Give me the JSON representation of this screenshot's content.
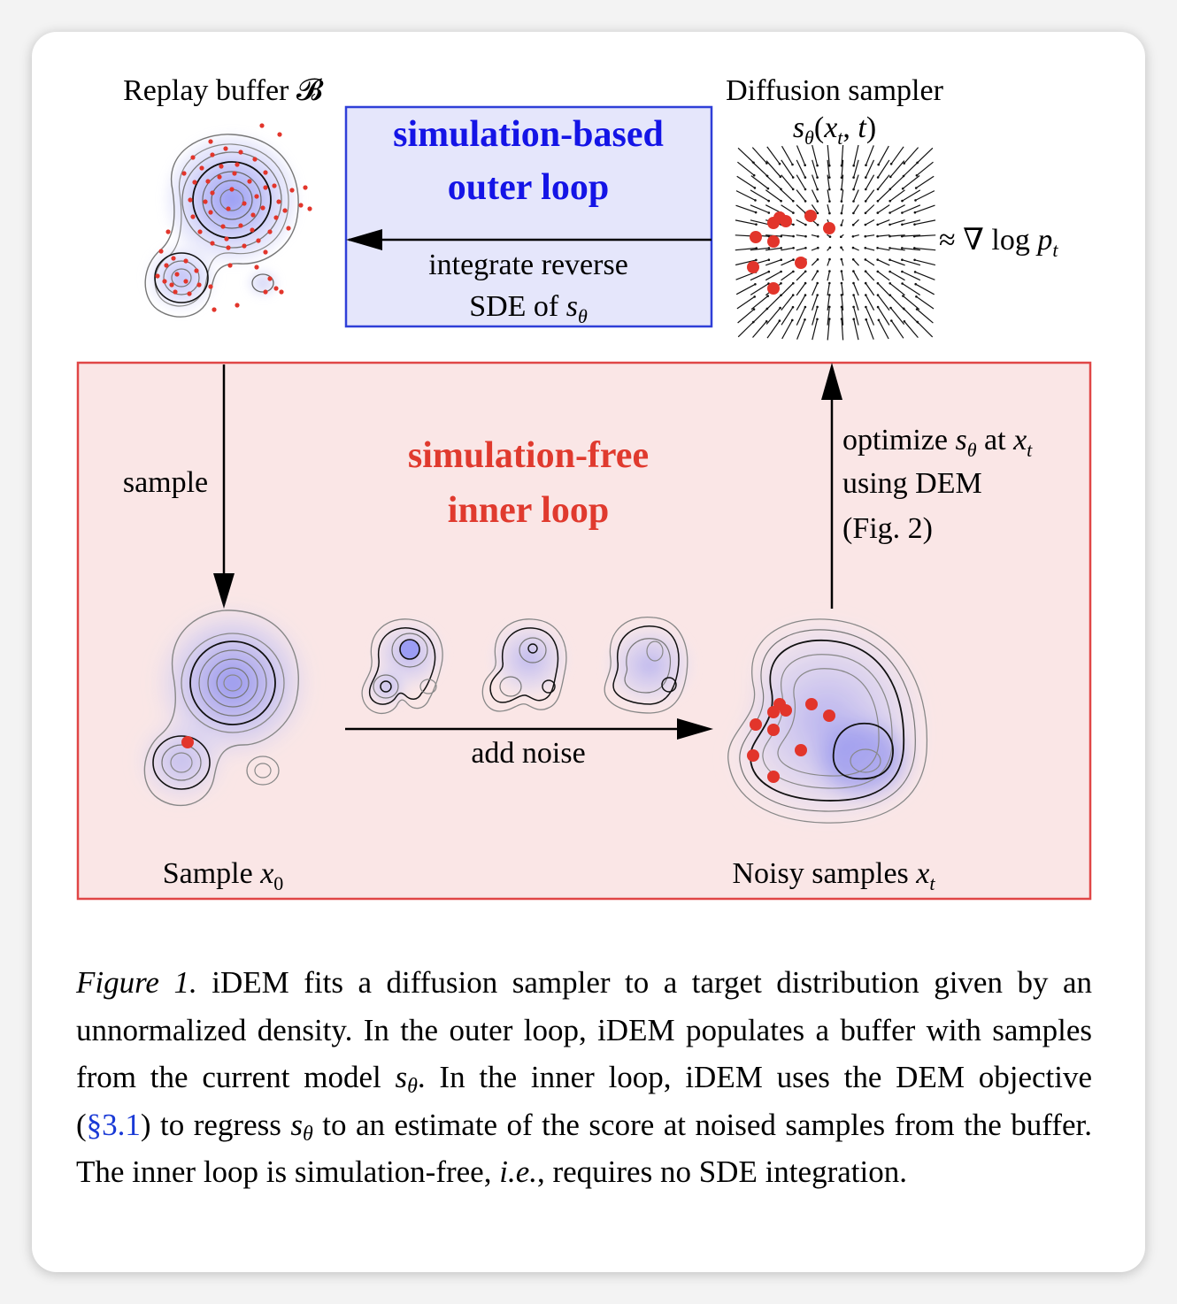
{
  "figure": {
    "replay_buffer_label": "Replay buffer 𝓑",
    "outer_loop": {
      "title_line1": "simulation-based",
      "title_line2": "outer loop",
      "arrow_label_line1": "integrate reverse",
      "arrow_label_line2": "SDE of sθ"
    },
    "diffusion_sampler": {
      "title": "Diffusion sampler",
      "formula": "sθ(xt, t)",
      "approx": "≈ ∇ log pt"
    },
    "inner_loop": {
      "title_line1": "simulation-free",
      "title_line2": "inner loop",
      "sample_label": "sample",
      "add_noise_label": "add noise",
      "optimize_line1": "optimize sθ at xt",
      "optimize_line2": "using DEM",
      "optimize_line3": "(Fig. 2)",
      "sample_x0_label": "Sample x0",
      "noisy_samples_label": "Noisy samples xt"
    },
    "colors": {
      "outer_box_fill": "#e5e6fb",
      "outer_box_border": "#2f3fd8",
      "outer_title": "#1414e6",
      "inner_box_fill": "#fae6e6",
      "inner_box_border": "#e04646",
      "inner_title": "#e03a2e",
      "sample_dot": "#e2352b",
      "density_fill": "#8a8cf2"
    }
  },
  "caption": {
    "lead": "Figure 1.",
    "part1": "iDEM fits a diffusion sampler to a target distribution given by an unnormalized density. In the outer loop, iDEM popu­lates a buffer with samples from the current model",
    "s_theta": "sθ",
    "part2": ". In the inner loop, iDEM uses the DEM objective (",
    "ref": "§3.1",
    "part3": ") to regress",
    "part4": "to an estimate of the score at noised samples from the buffer. The inner loop is simulation-free,",
    "ie": "i.e.",
    "part5": ", requires no SDE integration."
  }
}
